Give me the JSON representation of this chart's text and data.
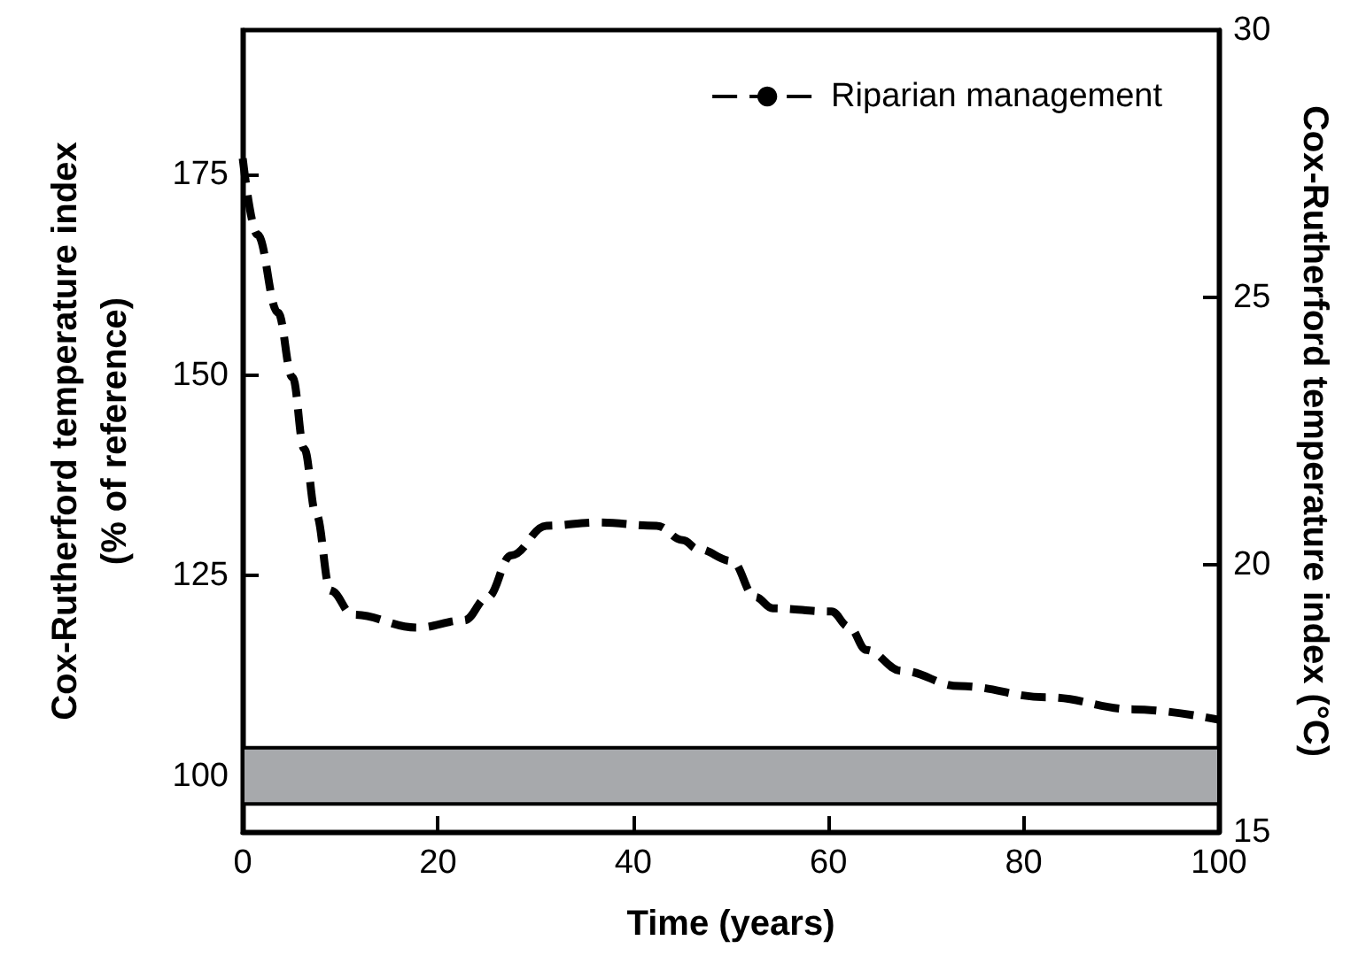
{
  "chart_data": {
    "type": "line",
    "xlabel": "Time (years)",
    "ylabel": "Cox-Rutherford temperature index\n(% of reference)",
    "y2label": "Cox-Rutherford temperature index (°C)",
    "x": [
      0,
      1.5,
      3.6,
      5.1,
      6.3,
      7.5,
      9,
      11.3,
      17.9,
      22.7,
      25.1,
      27.5,
      31.1,
      36.4,
      42.4,
      45.1,
      46.6,
      50.1,
      52.5,
      54.3,
      60.3,
      62.1,
      63.9,
      67.5,
      73.4,
      82.4,
      91.3,
      100
    ],
    "series": [
      {
        "name": "Riparian management",
        "color": "#000000",
        "values": [
          177,
          167.5,
          157.8,
          149.7,
          140.8,
          132.7,
          123.1,
          120.1,
          118.5,
          119.4,
          122.3,
          127.5,
          131.2,
          131.6,
          131.2,
          129.4,
          128.3,
          126.8,
          122.3,
          120.9,
          120.5,
          118.6,
          115.7,
          113.1,
          111.2,
          109.8,
          108.3,
          107
        ]
      }
    ],
    "xlim": [
      0,
      100
    ],
    "xticks": [
      0,
      20,
      40,
      60,
      80,
      100
    ],
    "ylim": [
      93,
      193
    ],
    "yticks": [
      100,
      125,
      150,
      175
    ],
    "y2lim": [
      15,
      30
    ],
    "y2ticks": [
      15,
      20,
      25,
      30
    ],
    "bands": [
      {
        "axis": "y",
        "from": 96.5,
        "to": 103.5,
        "color": "#a7a9ac"
      }
    ],
    "legend": "top right",
    "grid": false,
    "marker": "none",
    "line_style": "dashed"
  }
}
